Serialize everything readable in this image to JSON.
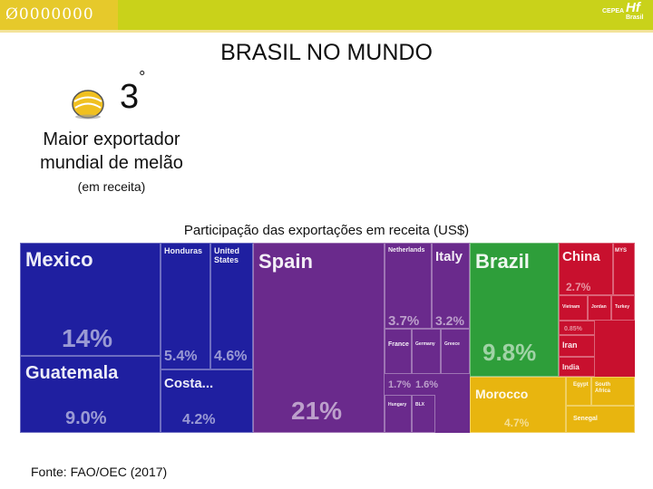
{
  "header": {
    "decor_text": "Ø0000000",
    "logo_small": "CEPEA",
    "logo_main": "Hf",
    "logo_sub": "Brasil"
  },
  "slide": {
    "title": "BRASIL NO MUNDO",
    "rank": "3",
    "rank_suffix": "°",
    "rank_icon": "melon-icon",
    "description_line1": "Maior exportador",
    "description_line2": "mundial de melão",
    "description_note": "(em receita)",
    "chart_title": "Participação das exportações em receita (US$)",
    "source": "Fonte: FAO/OEC (2017)"
  },
  "colors": {
    "americas": "#1f1fa0",
    "europe": "#6a2a8c",
    "south_america": "#2e9e3a",
    "asia": "#c8102e",
    "africa": "#e8b50f",
    "topbar": "#c9d21a"
  },
  "chart_data": {
    "type": "treemap",
    "title": "Participação das exportações em receita (US$)",
    "unit": "%",
    "items": [
      {
        "name": "Mexico",
        "value": 14,
        "value_label": "14%",
        "region": "americas"
      },
      {
        "name": "Guatemala",
        "value": 9.0,
        "value_label": "9.0%",
        "region": "americas"
      },
      {
        "name": "Honduras",
        "value": 5.4,
        "value_label": "5.4%",
        "region": "americas"
      },
      {
        "name": "United States",
        "value": 4.6,
        "value_label": "4.6%",
        "region": "americas"
      },
      {
        "name": "Costa...",
        "value": 4.2,
        "value_label": "4.2%",
        "region": "americas"
      },
      {
        "name": "Spain",
        "value": 21,
        "value_label": "21%",
        "region": "europe"
      },
      {
        "name": "Netherlands",
        "value": 3.7,
        "value_label": "3.7%",
        "region": "europe"
      },
      {
        "name": "Italy",
        "value": 3.2,
        "value_label": "3.2%",
        "region": "europe"
      },
      {
        "name": "France",
        "value": 1.7,
        "value_label": "1.7%",
        "region": "europe"
      },
      {
        "name": "Germany",
        "value": 1.6,
        "value_label": "1.6%",
        "region": "europe"
      },
      {
        "name": "Greece",
        "value": null,
        "value_label": "",
        "region": "europe"
      },
      {
        "name": "Hungary",
        "value": null,
        "value_label": "",
        "region": "europe"
      },
      {
        "name": "BLX",
        "value": null,
        "value_label": "",
        "region": "europe"
      },
      {
        "name": "Brazil",
        "value": 9.8,
        "value_label": "9.8%",
        "region": "south_america"
      },
      {
        "name": "China",
        "value": 2.7,
        "value_label": "2.7%",
        "region": "asia"
      },
      {
        "name": "MYS",
        "value": null,
        "value_label": "",
        "region": "asia"
      },
      {
        "name": "Vietnam",
        "value": null,
        "value_label": "",
        "region": "asia"
      },
      {
        "name": "Jordan",
        "value": null,
        "value_label": "",
        "region": "asia"
      },
      {
        "name": "Turkey",
        "value": null,
        "value_label": "",
        "region": "asia"
      },
      {
        "name": "",
        "value": 0.85,
        "value_label": "0.85%",
        "region": "asia"
      },
      {
        "name": "Iran",
        "value": null,
        "value_label": "",
        "region": "asia"
      },
      {
        "name": "India",
        "value": null,
        "value_label": "",
        "region": "asia"
      },
      {
        "name": "Morocco",
        "value": 4.7,
        "value_label": "4.7%",
        "region": "africa"
      },
      {
        "name": "Egypt",
        "value": null,
        "value_label": "",
        "region": "africa"
      },
      {
        "name": "South Africa",
        "value": null,
        "value_label": "",
        "region": "africa"
      },
      {
        "name": "Senegal",
        "value": null,
        "value_label": "",
        "region": "africa"
      }
    ]
  }
}
